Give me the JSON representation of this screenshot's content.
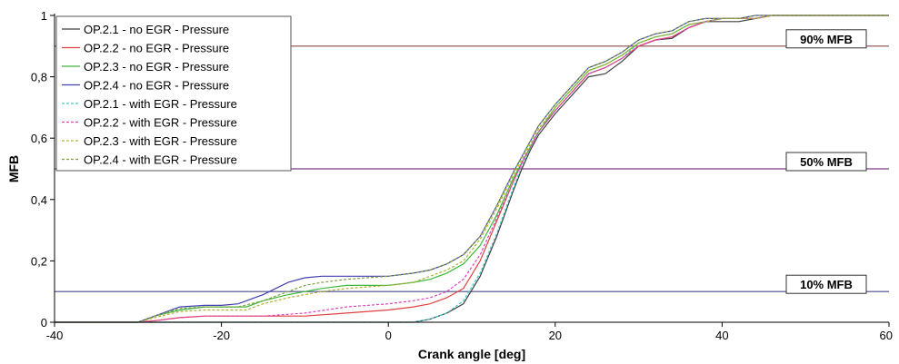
{
  "chart_data": {
    "type": "line",
    "xlabel": "Crank angle [deg]",
    "ylabel": "MFB",
    "xlim": [
      -40,
      60
    ],
    "ylim": [
      0,
      1
    ],
    "x_ticks": [
      -40,
      -20,
      0,
      20,
      40,
      60
    ],
    "x_tick_labels": [
      "-40",
      "-20",
      "0",
      "20",
      "40",
      "60"
    ],
    "y_ticks": [
      0,
      0.2,
      0.4,
      0.6,
      0.8,
      1
    ],
    "y_tick_labels": [
      "0",
      "0,2",
      "0,4",
      "0,6",
      "0,8",
      "1"
    ],
    "legend_position": "top-left",
    "reference_lines": [
      {
        "label": "90% MFB",
        "y": 0.9,
        "color": "#8b4a4a"
      },
      {
        "label": "50% MFB",
        "y": 0.5,
        "color": "#7a3b8a"
      },
      {
        "label": "10% MFB",
        "y": 0.1,
        "color": "#4a4a8a"
      }
    ],
    "series": [
      {
        "name": "OP.2.1 - no EGR - Pressure",
        "color": "#404040",
        "dash": "solid",
        "x": [
          -40,
          -32,
          -30,
          -28,
          -25,
          -20,
          -15,
          -10,
          -5,
          0,
          3,
          5,
          7,
          9,
          11,
          13,
          15,
          16,
          17,
          18,
          20,
          22,
          24,
          26,
          28,
          30,
          32,
          34,
          36,
          38,
          40,
          42,
          44,
          46,
          48,
          50,
          55,
          60
        ],
        "y": [
          0,
          0,
          0,
          0,
          0,
          0,
          0,
          0,
          0,
          0,
          0,
          0.01,
          0.03,
          0.06,
          0.15,
          0.28,
          0.43,
          0.5,
          0.56,
          0.61,
          0.68,
          0.74,
          0.8,
          0.81,
          0.85,
          0.9,
          0.92,
          0.925,
          0.96,
          0.98,
          0.98,
          0.98,
          0.99,
          1,
          1,
          1,
          1,
          1
        ]
      },
      {
        "name": "OP.2.2 - no EGR - Pressure",
        "color": "#e04040",
        "dash": "solid",
        "x": [
          -40,
          -32,
          -30,
          -28,
          -25,
          -22,
          -20,
          -15,
          -10,
          -5,
          0,
          3,
          5,
          7,
          9,
          11,
          13,
          15,
          16,
          17,
          18,
          20,
          22,
          24,
          26,
          28,
          30,
          32,
          34,
          36,
          38,
          40,
          42,
          44,
          46,
          48,
          50,
          55,
          60
        ],
        "y": [
          0,
          0,
          0,
          0.005,
          0.015,
          0.02,
          0.02,
          0.02,
          0.02,
          0.03,
          0.04,
          0.05,
          0.06,
          0.08,
          0.11,
          0.2,
          0.33,
          0.46,
          0.52,
          0.57,
          0.62,
          0.69,
          0.75,
          0.81,
          0.83,
          0.86,
          0.9,
          0.92,
          0.93,
          0.96,
          0.98,
          0.99,
          0.99,
          0.99,
          1,
          1,
          1,
          1,
          1
        ]
      },
      {
        "name": "OP.2.3 - no EGR - Pressure",
        "color": "#3cb83c",
        "dash": "solid",
        "x": [
          -40,
          -32,
          -30,
          -28,
          -25,
          -22,
          -20,
          -17,
          -15,
          -12,
          -10,
          -8,
          -5,
          0,
          3,
          5,
          7,
          9,
          11,
          13,
          15,
          16,
          17,
          18,
          20,
          22,
          24,
          26,
          28,
          30,
          32,
          34,
          36,
          38,
          40,
          42,
          44,
          46,
          48,
          50,
          55,
          60
        ],
        "y": [
          0,
          0,
          0,
          0.02,
          0.04,
          0.05,
          0.05,
          0.05,
          0.07,
          0.09,
          0.1,
          0.11,
          0.12,
          0.12,
          0.13,
          0.14,
          0.16,
          0.19,
          0.25,
          0.35,
          0.47,
          0.52,
          0.57,
          0.62,
          0.7,
          0.76,
          0.82,
          0.84,
          0.87,
          0.91,
          0.93,
          0.94,
          0.97,
          0.98,
          0.99,
          0.99,
          0.99,
          1,
          1,
          1,
          1,
          1
        ]
      },
      {
        "name": "OP.2.4 - no EGR - Pressure",
        "color": "#4040b0",
        "dash": "solid",
        "x": [
          -40,
          -32,
          -30,
          -28,
          -25,
          -22,
          -20,
          -18,
          -15,
          -12,
          -10,
          -8,
          -5,
          0,
          3,
          5,
          7,
          9,
          11,
          13,
          15,
          16,
          17,
          18,
          20,
          22,
          24,
          26,
          28,
          30,
          32,
          34,
          36,
          38,
          40,
          42,
          44,
          46,
          48,
          50,
          55,
          60
        ],
        "y": [
          0,
          0,
          0,
          0.02,
          0.05,
          0.055,
          0.055,
          0.06,
          0.09,
          0.13,
          0.145,
          0.15,
          0.15,
          0.15,
          0.16,
          0.17,
          0.19,
          0.22,
          0.28,
          0.38,
          0.49,
          0.54,
          0.59,
          0.64,
          0.71,
          0.77,
          0.83,
          0.85,
          0.88,
          0.92,
          0.94,
          0.95,
          0.98,
          0.99,
          0.99,
          0.99,
          1,
          1,
          1,
          1,
          1,
          1
        ]
      },
      {
        "name": "OP.2.1 - with EGR - Pressure",
        "color": "#40c8c8",
        "dash": "dashed",
        "x": [
          -40,
          -32,
          -30,
          -28,
          -25,
          -20,
          -15,
          -10,
          -5,
          0,
          3,
          5,
          7,
          9,
          11,
          13,
          15,
          16,
          17,
          18,
          20,
          22,
          24,
          26,
          28,
          30,
          32,
          34,
          36,
          38,
          40,
          42,
          44,
          46,
          48,
          50,
          55,
          60
        ],
        "y": [
          0,
          0,
          0,
          0,
          0,
          0,
          0,
          0,
          0,
          0,
          0,
          0.01,
          0.03,
          0.07,
          0.16,
          0.29,
          0.44,
          0.51,
          0.57,
          0.62,
          0.69,
          0.75,
          0.81,
          0.83,
          0.86,
          0.91,
          0.93,
          0.94,
          0.97,
          0.98,
          0.99,
          0.99,
          0.99,
          1,
          1,
          1,
          1,
          1
        ]
      },
      {
        "name": "OP.2.2 - with EGR - Pressure",
        "color": "#e040c0",
        "dash": "dashed",
        "x": [
          -40,
          -32,
          -30,
          -28,
          -25,
          -22,
          -20,
          -15,
          -10,
          -5,
          0,
          3,
          5,
          7,
          9,
          11,
          13,
          15,
          16,
          17,
          18,
          20,
          22,
          24,
          26,
          28,
          30,
          32,
          34,
          36,
          38,
          40,
          42,
          44,
          46,
          48,
          50,
          55,
          60
        ],
        "y": [
          0,
          0,
          0,
          0.005,
          0.015,
          0.02,
          0.02,
          0.02,
          0.03,
          0.05,
          0.06,
          0.07,
          0.08,
          0.1,
          0.14,
          0.22,
          0.34,
          0.46,
          0.52,
          0.57,
          0.62,
          0.69,
          0.75,
          0.81,
          0.83,
          0.86,
          0.9,
          0.92,
          0.93,
          0.96,
          0.98,
          0.99,
          0.99,
          0.99,
          1,
          1,
          1,
          1,
          1
        ]
      },
      {
        "name": "OP.2.3 - with EGR - Pressure",
        "color": "#b0b030",
        "dash": "dashed",
        "x": [
          -40,
          -32,
          -30,
          -28,
          -25,
          -22,
          -20,
          -17,
          -15,
          -12,
          -10,
          -8,
          -5,
          0,
          3,
          5,
          7,
          9,
          11,
          13,
          15,
          16,
          17,
          18,
          20,
          22,
          24,
          26,
          28,
          30,
          32,
          34,
          36,
          38,
          40,
          42,
          44,
          46,
          48,
          50,
          55,
          60
        ],
        "y": [
          0,
          0,
          0,
          0.015,
          0.035,
          0.04,
          0.04,
          0.04,
          0.06,
          0.08,
          0.09,
          0.1,
          0.11,
          0.12,
          0.13,
          0.15,
          0.17,
          0.2,
          0.27,
          0.37,
          0.48,
          0.53,
          0.58,
          0.63,
          0.7,
          0.76,
          0.82,
          0.84,
          0.87,
          0.91,
          0.93,
          0.94,
          0.97,
          0.98,
          0.99,
          0.99,
          0.99,
          1,
          1,
          1,
          1,
          1
        ]
      },
      {
        "name": "OP.2.4 - with EGR - Pressure",
        "color": "#80a040",
        "dash": "dashed",
        "x": [
          -40,
          -32,
          -30,
          -28,
          -25,
          -22,
          -20,
          -18,
          -15,
          -12,
          -10,
          -8,
          -5,
          0,
          3,
          5,
          7,
          9,
          11,
          13,
          15,
          16,
          17,
          18,
          20,
          22,
          24,
          26,
          28,
          30,
          32,
          34,
          36,
          38,
          40,
          42,
          44,
          46,
          48,
          50,
          55,
          60
        ],
        "y": [
          0,
          0,
          0,
          0.02,
          0.045,
          0.05,
          0.05,
          0.05,
          0.07,
          0.1,
          0.12,
          0.13,
          0.14,
          0.15,
          0.16,
          0.17,
          0.19,
          0.22,
          0.28,
          0.38,
          0.49,
          0.54,
          0.59,
          0.64,
          0.71,
          0.77,
          0.83,
          0.85,
          0.88,
          0.92,
          0.94,
          0.95,
          0.98,
          0.99,
          0.99,
          0.99,
          1,
          1,
          1,
          1,
          1,
          1
        ]
      }
    ]
  }
}
